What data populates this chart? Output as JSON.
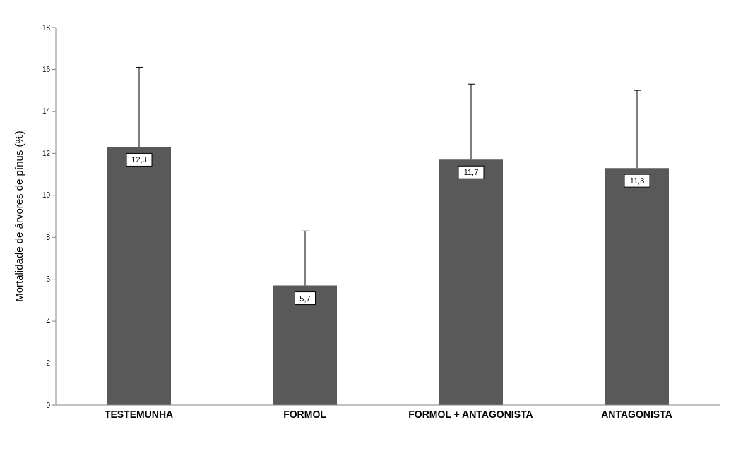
{
  "chart_data": {
    "type": "bar",
    "ylabel": "Mortalidade de árvores de pínus (%)",
    "categories": [
      "TESTEMUNHA",
      "FORMOL",
      "FORMOL + ANTAGONISTA",
      "ANTAGONISTA"
    ],
    "values": [
      12.3,
      5.7,
      11.7,
      11.3
    ],
    "errors": [
      [
        12.3,
        16.1
      ],
      [
        5.7,
        8.3
      ],
      [
        11.7,
        15.3
      ],
      [
        11.3,
        15.0
      ]
    ],
    "value_labels": [
      "12,3",
      "5,7",
      "11,7",
      "11,3"
    ],
    "color": "#595959",
    "ylim": [
      0,
      18
    ],
    "yticks": [
      0,
      2,
      4,
      6,
      8,
      10,
      12,
      14,
      16,
      18
    ],
    "grid": false,
    "legend": false
  }
}
